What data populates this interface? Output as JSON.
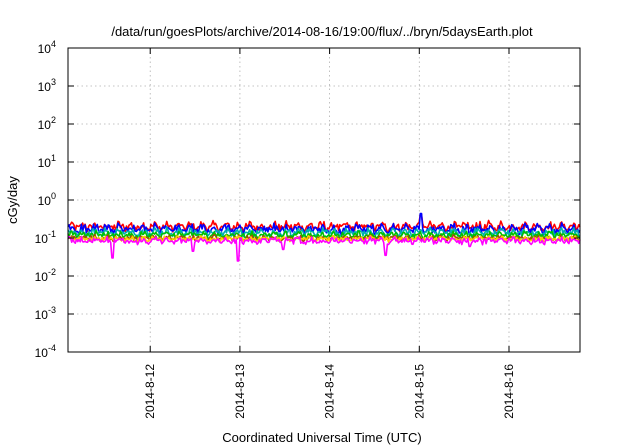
{
  "chart_data": {
    "type": "line",
    "title": "/data/run/goesPlots/archive/2014-08-16/19:00/flux/../bryn/5daysEarth.plot",
    "xlabel": "Coordinated Universal Time (UTC)",
    "ylabel": "cGy/day",
    "y_scale": "log",
    "ylim": [
      0.0001,
      10000
    ],
    "y_ticks": [
      {
        "base": "10",
        "exp": "-4",
        "value": 0.0001
      },
      {
        "base": "10",
        "exp": "-3",
        "value": 0.001
      },
      {
        "base": "10",
        "exp": "-2",
        "value": 0.01
      },
      {
        "base": "10",
        "exp": "-1",
        "value": 0.1
      },
      {
        "base": "10",
        "exp": "0",
        "value": 1
      },
      {
        "base": "10",
        "exp": "1",
        "value": 10
      },
      {
        "base": "10",
        "exp": "2",
        "value": 100
      },
      {
        "base": "10",
        "exp": "3",
        "value": 1000
      },
      {
        "base": "10",
        "exp": "4",
        "value": 10000
      }
    ],
    "x_range": [
      "2014-08-11 02:00",
      "2014-08-16 19:00"
    ],
    "x_ticks": [
      {
        "label": "2014-8-12",
        "value": "2014-08-12 00:00"
      },
      {
        "label": "2014-8-13",
        "value": "2014-08-13 00:00"
      },
      {
        "label": "2014-8-14",
        "value": "2014-08-14 00:00"
      },
      {
        "label": "2014-8-15",
        "value": "2014-08-15 00:00"
      },
      {
        "label": "2014-8-16",
        "value": "2014-08-16 00:00"
      }
    ],
    "grid": true,
    "legend": "none",
    "series": [
      {
        "color": "#ff0000",
        "base": 0.2,
        "variation": 0.35,
        "spikes": [
          {
            "at": "2014-08-15 00:30",
            "value": 0.42
          }
        ]
      },
      {
        "color": "#0000ff",
        "base": 0.17,
        "variation": 0.35,
        "spikes": [
          {
            "at": "2014-08-15 00:30",
            "value": 0.44
          }
        ]
      },
      {
        "color": "#00b0b0",
        "base": 0.14,
        "variation": 0.3,
        "spikes": []
      },
      {
        "color": "#00c000",
        "base": 0.12,
        "variation": 0.25,
        "spikes": []
      },
      {
        "color": "#a05000",
        "base": 0.1,
        "variation": 0.2,
        "spikes": []
      },
      {
        "color": "#ffcc00",
        "base": 0.095,
        "variation": 0.2,
        "spikes": []
      },
      {
        "color": "#ff00ff",
        "base": 0.085,
        "variation": 0.25,
        "spikes": [
          {
            "at": "2014-08-11 14:00",
            "value": 0.03
          },
          {
            "at": "2014-08-12 11:30",
            "value": 0.045
          },
          {
            "at": "2014-08-12 23:30",
            "value": 0.025
          },
          {
            "at": "2014-08-13 11:30",
            "value": 0.05
          },
          {
            "at": "2014-08-14 15:00",
            "value": 0.035
          },
          {
            "at": "2014-08-15 13:30",
            "value": 0.06
          }
        ]
      }
    ]
  }
}
